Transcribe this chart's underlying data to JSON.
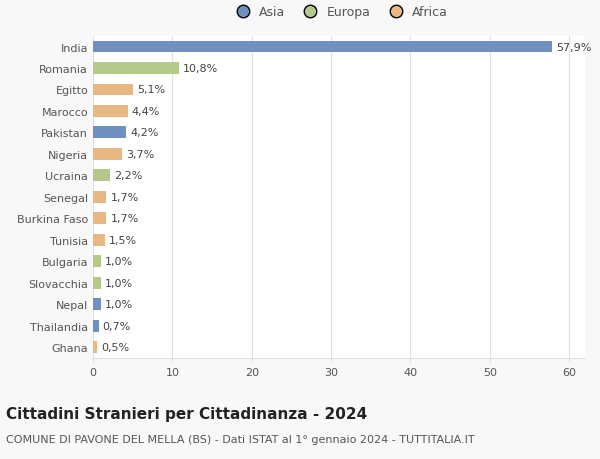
{
  "countries": [
    "India",
    "Romania",
    "Egitto",
    "Marocco",
    "Pakistan",
    "Nigeria",
    "Ucraina",
    "Senegal",
    "Burkina Faso",
    "Tunisia",
    "Bulgaria",
    "Slovacchia",
    "Nepal",
    "Thailandia",
    "Ghana"
  ],
  "values": [
    57.9,
    10.8,
    5.1,
    4.4,
    4.2,
    3.7,
    2.2,
    1.7,
    1.7,
    1.5,
    1.0,
    1.0,
    1.0,
    0.7,
    0.5
  ],
  "labels": [
    "57,9%",
    "10,8%",
    "5,1%",
    "4,4%",
    "4,2%",
    "3,7%",
    "2,2%",
    "1,7%",
    "1,7%",
    "1,5%",
    "1,0%",
    "1,0%",
    "1,0%",
    "0,7%",
    "0,5%"
  ],
  "continents": [
    "Asia",
    "Europa",
    "Africa",
    "Africa",
    "Asia",
    "Africa",
    "Europa",
    "Africa",
    "Africa",
    "Africa",
    "Europa",
    "Europa",
    "Asia",
    "Asia",
    "Africa"
  ],
  "colors": {
    "Asia": "#7090bf",
    "Europa": "#b5c98a",
    "Africa": "#e8b882"
  },
  "legend_labels": [
    "Asia",
    "Europa",
    "Africa"
  ],
  "xlim": [
    0,
    62
  ],
  "xticks": [
    0,
    10,
    20,
    30,
    40,
    50,
    60
  ],
  "title": "Cittadini Stranieri per Cittadinanza - 2024",
  "subtitle": "COMUNE DI PAVONE DEL MELLA (BS) - Dati ISTAT al 1° gennaio 2024 - TUTTITALIA.IT",
  "bg_color": "#f8f8f8",
  "plot_bg_color": "#ffffff",
  "bar_height": 0.55,
  "grid_color": "#e0e0e0",
  "title_fontsize": 11,
  "subtitle_fontsize": 8,
  "label_fontsize": 8,
  "tick_fontsize": 8,
  "legend_fontsize": 9
}
